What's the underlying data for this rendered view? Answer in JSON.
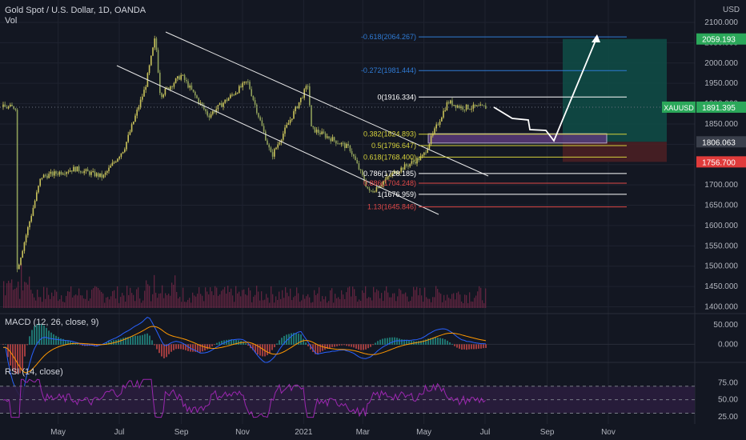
{
  "header": {
    "symbol_title": "Gold Spot / U.S. Dollar, 1D, OANDA",
    "vol_label": "Vol",
    "macd_label": "MACD (12, 26, close, 9)",
    "rsi_label": "RSI (14, close)",
    "currency": "USD"
  },
  "colors": {
    "background": "#131722",
    "grid": "#1f2330",
    "up_candle": "#c9c25a",
    "down_candle": "#8fa05a",
    "volume": "#7a2a4a",
    "macd": "#2962ff",
    "signal": "#ff9800",
    "rsi": "#9c27b0",
    "rsi_band": "#2a1d3d",
    "fib_white": "#ffffff",
    "fib_yellow": "#d5d13b",
    "fib_red": "#e04848",
    "fib_blue": "#2f7bd5",
    "target_zone": "#0f4a45",
    "stop_zone": "#4a1f24",
    "price_badge_green": "#2ba85a",
    "price_badge_red": "#e03b3b"
  },
  "chart_data": {
    "type": "candlestick",
    "title": "Gold Spot / U.S. Dollar, 1D, OANDA",
    "y_axis": {
      "min": 1400,
      "max": 2100,
      "ticks": [
        "2100.000",
        "2050.000",
        "2000.000",
        "1950.000",
        "1900.000",
        "1850.000",
        "1800.000",
        "1750.000",
        "1700.000",
        "1650.000",
        "1600.000",
        "1550.000",
        "1500.000",
        "1450.000",
        "1400.000"
      ]
    },
    "x_axis": {
      "ticks": [
        "May",
        "Jul",
        "Sep",
        "Nov",
        "2021",
        "Mar",
        "May",
        "Jul",
        "Sep",
        "Nov"
      ]
    },
    "price_anchors": [
      {
        "date": "2020-03-20",
        "close": 1480
      },
      {
        "date": "2020-04-14",
        "close": 1720
      },
      {
        "date": "2020-05-18",
        "close": 1740
      },
      {
        "date": "2020-06-15",
        "close": 1720
      },
      {
        "date": "2020-07-06",
        "close": 1790
      },
      {
        "date": "2020-07-27",
        "close": 1940
      },
      {
        "date": "2020-08-06",
        "close": 2064
      },
      {
        "date": "2020-08-11",
        "close": 1920
      },
      {
        "date": "2020-09-01",
        "close": 1970
      },
      {
        "date": "2020-09-28",
        "close": 1870
      },
      {
        "date": "2020-11-06",
        "close": 1955
      },
      {
        "date": "2020-11-30",
        "close": 1770
      },
      {
        "date": "2021-01-06",
        "close": 1950
      },
      {
        "date": "2021-01-08",
        "close": 1840
      },
      {
        "date": "2021-02-16",
        "close": 1790
      },
      {
        "date": "2021-03-08",
        "close": 1680
      },
      {
        "date": "2021-04-01",
        "close": 1730
      },
      {
        "date": "2021-04-30",
        "close": 1770
      },
      {
        "date": "2021-05-25",
        "close": 1905
      },
      {
        "date": "2021-06-07",
        "close": 1891
      }
    ],
    "fib_levels": [
      {
        "label": "-0.618(2064.267)",
        "price": 2064.267,
        "color": "blue"
      },
      {
        "label": "-0.272(1981.444)",
        "price": 1981.444,
        "color": "blue"
      },
      {
        "label": "0(1916.334)",
        "price": 1916.334,
        "color": "white"
      },
      {
        "label": "0.382(1824.893)",
        "price": 1824.893,
        "color": "yellow"
      },
      {
        "label": "0.5(1796.647)",
        "price": 1796.647,
        "color": "yellow"
      },
      {
        "label": "0.618(1768.400)",
        "price": 1768.4,
        "color": "yellow"
      },
      {
        "label": "0.786(1728.185)",
        "price": 1728.185,
        "color": "white"
      },
      {
        "label": "0.886(1704.248)",
        "price": 1704.248,
        "color": "red"
      },
      {
        "label": "1(1676.959)",
        "price": 1676.959,
        "color": "white"
      },
      {
        "label": "1.13(1645.846)",
        "price": 1645.846,
        "color": "red"
      }
    ],
    "price_labels": [
      {
        "text": "2059.193",
        "price": 2059.193,
        "color": "green"
      },
      {
        "text": "1891.395",
        "price": 1891.395,
        "color": "green",
        "ticker": "XAUUSD"
      },
      {
        "text": "1806.063",
        "price": 1806.063,
        "color": "gray"
      },
      {
        "text": "1756.700",
        "price": 1756.7,
        "color": "red"
      }
    ],
    "macd": {
      "ticks": [
        "50.000",
        "0.000"
      ],
      "min": -40,
      "max": 70
    },
    "rsi": {
      "ticks": [
        "75.00",
        "50.00",
        "25.00"
      ],
      "min": 20,
      "max": 85,
      "upper": 70,
      "lower": 30
    }
  }
}
